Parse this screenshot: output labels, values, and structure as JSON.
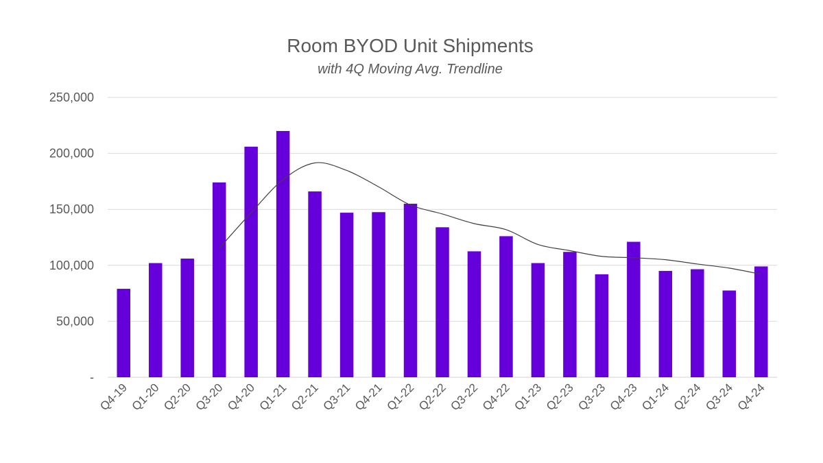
{
  "chart_data": {
    "type": "bar",
    "title": "Room BYOD Unit Shipments",
    "subtitle": "with 4Q Moving Avg. Trendline",
    "xlabel": "",
    "ylabel": "",
    "categories": [
      "Q4-19",
      "Q1-20",
      "Q2-20",
      "Q3-20",
      "Q4-20",
      "Q1-21",
      "Q2-21",
      "Q3-21",
      "Q4-21",
      "Q1-22",
      "Q2-22",
      "Q3-22",
      "Q4-22",
      "Q1-23",
      "Q2-23",
      "Q3-23",
      "Q4-23",
      "Q1-24",
      "Q2-24",
      "Q3-24",
      "Q4-24"
    ],
    "series": [
      {
        "values": [
          79000,
          102000,
          106000,
          174000,
          206000,
          220000,
          166000,
          147000,
          147500,
          155000,
          134000,
          112500,
          126000,
          102000,
          112000,
          92000,
          121000,
          95000,
          96500,
          77500,
          99000
        ]
      }
    ],
    "trendline": {
      "type": "4Q moving average",
      "values": [
        null,
        null,
        null,
        115250,
        147000,
        176500,
        191500,
        184750,
        170125,
        153875,
        145875,
        137250,
        131875,
        118625,
        113125,
        108000,
        106750,
        105000,
        101125,
        97500,
        92000
      ]
    },
    "ylim": [
      0,
      250000
    ],
    "yticks": [
      0,
      50000,
      100000,
      150000,
      200000,
      250000
    ],
    "ytick_labels": [
      "-",
      "50,000",
      "100,000",
      "150,000",
      "200,000",
      "250,000"
    ],
    "grid": true,
    "legend": "none",
    "colors": {
      "bar": "#6600db",
      "trendline": "#404040",
      "grid": "#d9d9d9",
      "text": "#595959"
    }
  }
}
